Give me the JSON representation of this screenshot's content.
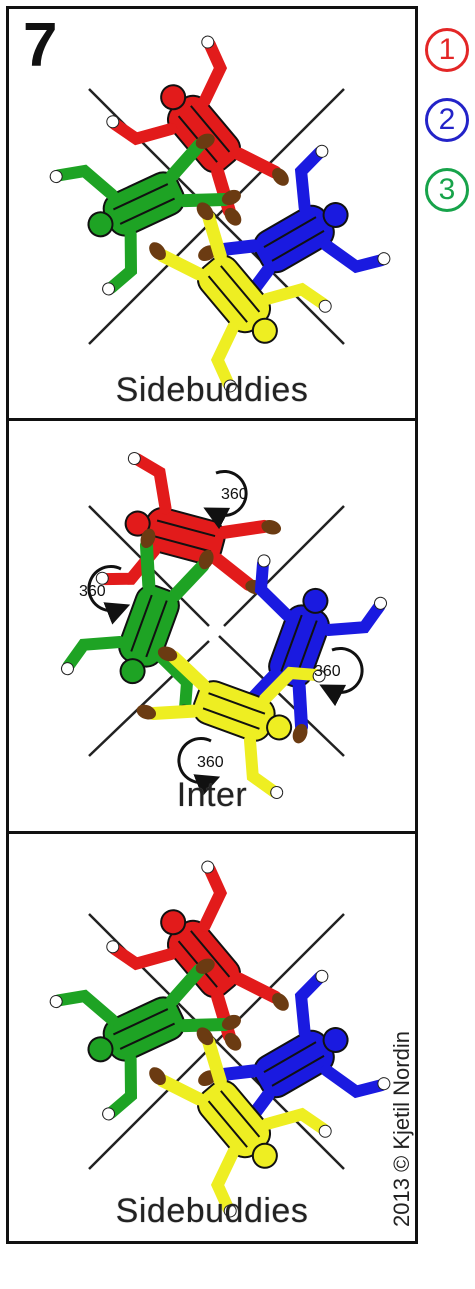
{
  "step": "7",
  "legend": [
    {
      "label": "1",
      "color": "#e32626"
    },
    {
      "label": "2",
      "color": "#2323c8"
    },
    {
      "label": "3",
      "color": "#17a34a"
    }
  ],
  "panels": [
    {
      "caption": "Sidebuddies"
    },
    {
      "caption": "Inter",
      "rotation_labels": [
        "360",
        "360",
        "360",
        "360"
      ]
    },
    {
      "caption": "Sidebuddies"
    }
  ],
  "copyright": "2013 © Kjetil Nordin",
  "colors": {
    "red": "#e21b1b",
    "blue": "#1a1ae0",
    "green": "#1ea324",
    "yellow": "#eeee22",
    "skin": "#6b3b12"
  }
}
